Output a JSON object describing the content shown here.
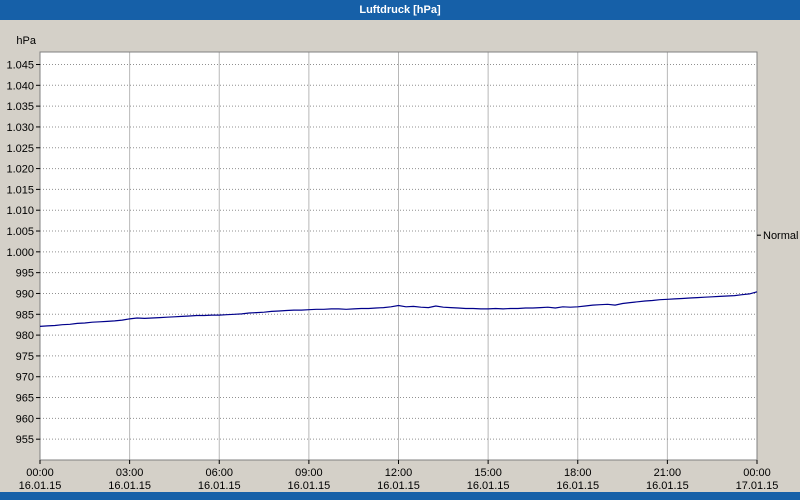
{
  "window": {
    "title": "Luftdruck [hPa]"
  },
  "colors": {
    "titlebar_bg": "#1660a8",
    "window_bg": "#d4d0c8",
    "plot_bg": "#ffffff",
    "border": "#808080",
    "grid_h": "#909090",
    "grid_v": "#b8b8b8",
    "text": "#000000",
    "line": "#00008b"
  },
  "chart_data": {
    "type": "line",
    "title": "Luftdruck [hPa]",
    "xlabel": "",
    "ylabel": "hPa",
    "grid": true,
    "y_axis": {
      "unit_label": "hPa",
      "range": [
        950,
        1048
      ],
      "ticks": [
        {
          "value": 1045,
          "label": "1.045"
        },
        {
          "value": 1040,
          "label": "1.040"
        },
        {
          "value": 1035,
          "label": "1.035"
        },
        {
          "value": 1030,
          "label": "1.030"
        },
        {
          "value": 1025,
          "label": "1.025"
        },
        {
          "value": 1020,
          "label": "1.020"
        },
        {
          "value": 1015,
          "label": "1.015"
        },
        {
          "value": 1010,
          "label": "1.010"
        },
        {
          "value": 1005,
          "label": "1.005"
        },
        {
          "value": 1000,
          "label": "1.000"
        },
        {
          "value": 995,
          "label": "995"
        },
        {
          "value": 990,
          "label": "990"
        },
        {
          "value": 985,
          "label": "985"
        },
        {
          "value": 980,
          "label": "980"
        },
        {
          "value": 975,
          "label": "975"
        },
        {
          "value": 970,
          "label": "970"
        },
        {
          "value": 965,
          "label": "965"
        },
        {
          "value": 960,
          "label": "960"
        },
        {
          "value": 955,
          "label": "955"
        }
      ]
    },
    "x_axis": {
      "range": [
        0,
        24
      ],
      "ticks": [
        {
          "hour": 0,
          "time": "00:00",
          "date": "16.01.15"
        },
        {
          "hour": 3,
          "time": "03:00",
          "date": "16.01.15"
        },
        {
          "hour": 6,
          "time": "06:00",
          "date": "16.01.15"
        },
        {
          "hour": 9,
          "time": "09:00",
          "date": "16.01.15"
        },
        {
          "hour": 12,
          "time": "12:00",
          "date": "16.01.15"
        },
        {
          "hour": 15,
          "time": "15:00",
          "date": "16.01.15"
        },
        {
          "hour": 18,
          "time": "18:00",
          "date": "16.01.15"
        },
        {
          "hour": 21,
          "time": "21:00",
          "date": "16.01.15"
        },
        {
          "hour": 24,
          "time": "00:00",
          "date": "17.01.15"
        }
      ]
    },
    "normal_marker": {
      "label": "Normal",
      "value": 1004
    },
    "series": [
      {
        "name": "Luftdruck",
        "color": "#00008b",
        "points": [
          [
            0,
            982.1
          ],
          [
            0.25,
            982.2
          ],
          [
            0.5,
            982.3
          ],
          [
            0.75,
            982.5
          ],
          [
            1,
            982.6
          ],
          [
            1.25,
            982.8
          ],
          [
            1.5,
            982.9
          ],
          [
            1.75,
            983.1
          ],
          [
            2,
            983.2
          ],
          [
            2.25,
            983.3
          ],
          [
            2.5,
            983.4
          ],
          [
            2.75,
            983.6
          ],
          [
            3,
            983.9
          ],
          [
            3.25,
            984.1
          ],
          [
            3.5,
            984.0
          ],
          [
            3.75,
            984.1
          ],
          [
            4,
            984.2
          ],
          [
            4.25,
            984.3
          ],
          [
            4.5,
            984.4
          ],
          [
            4.75,
            984.5
          ],
          [
            5,
            984.6
          ],
          [
            5.25,
            984.7
          ],
          [
            5.5,
            984.7
          ],
          [
            5.75,
            984.8
          ],
          [
            6,
            984.8
          ],
          [
            6.25,
            984.9
          ],
          [
            6.5,
            985.0
          ],
          [
            6.75,
            985.1
          ],
          [
            7,
            985.3
          ],
          [
            7.25,
            985.4
          ],
          [
            7.5,
            985.5
          ],
          [
            7.75,
            985.7
          ],
          [
            8,
            985.8
          ],
          [
            8.25,
            985.9
          ],
          [
            8.5,
            986.0
          ],
          [
            8.75,
            986.0
          ],
          [
            9,
            986.1
          ],
          [
            9.25,
            986.2
          ],
          [
            9.5,
            986.2
          ],
          [
            9.75,
            986.3
          ],
          [
            10,
            986.3
          ],
          [
            10.25,
            986.2
          ],
          [
            10.5,
            986.3
          ],
          [
            10.75,
            986.4
          ],
          [
            11,
            986.4
          ],
          [
            11.25,
            986.5
          ],
          [
            11.5,
            986.6
          ],
          [
            11.75,
            986.8
          ],
          [
            12,
            987.1
          ],
          [
            12.25,
            986.8
          ],
          [
            12.5,
            986.9
          ],
          [
            12.75,
            986.7
          ],
          [
            13,
            986.6
          ],
          [
            13.25,
            987.0
          ],
          [
            13.5,
            986.7
          ],
          [
            13.75,
            986.6
          ],
          [
            14,
            986.5
          ],
          [
            14.25,
            986.4
          ],
          [
            14.5,
            986.4
          ],
          [
            14.75,
            986.3
          ],
          [
            15,
            986.3
          ],
          [
            15.25,
            986.4
          ],
          [
            15.5,
            986.3
          ],
          [
            15.75,
            986.4
          ],
          [
            16,
            986.4
          ],
          [
            16.25,
            986.5
          ],
          [
            16.5,
            986.5
          ],
          [
            16.75,
            986.6
          ],
          [
            17,
            986.7
          ],
          [
            17.25,
            986.5
          ],
          [
            17.5,
            986.8
          ],
          [
            17.75,
            986.7
          ],
          [
            18,
            986.8
          ],
          [
            18.25,
            987.0
          ],
          [
            18.5,
            987.2
          ],
          [
            18.75,
            987.3
          ],
          [
            19,
            987.4
          ],
          [
            19.25,
            987.2
          ],
          [
            19.5,
            987.6
          ],
          [
            19.75,
            987.8
          ],
          [
            20,
            988.0
          ],
          [
            20.25,
            988.2
          ],
          [
            20.5,
            988.3
          ],
          [
            20.75,
            988.5
          ],
          [
            21,
            988.6
          ],
          [
            21.25,
            988.7
          ],
          [
            21.5,
            988.8
          ],
          [
            21.75,
            988.9
          ],
          [
            22,
            989.0
          ],
          [
            22.25,
            989.1
          ],
          [
            22.5,
            989.2
          ],
          [
            22.75,
            989.3
          ],
          [
            23,
            989.4
          ],
          [
            23.25,
            989.5
          ],
          [
            23.5,
            989.7
          ],
          [
            23.75,
            989.9
          ],
          [
            24,
            990.4
          ]
        ]
      }
    ]
  }
}
